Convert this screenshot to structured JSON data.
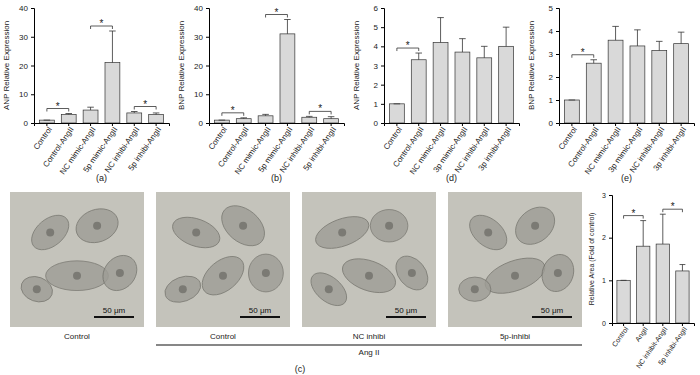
{
  "chart_data": [
    {
      "type": "bar",
      "title": "(a)",
      "y_label": "ANP Relative Expression",
      "categories": [
        "Control",
        "Control-AngII",
        "NC mimic-AngII",
        "5p mimic-AngII",
        "NC inhibi-AngII",
        "5p inhibi-AngII"
      ],
      "values": [
        1,
        3,
        4.5,
        21,
        3.5,
        3
      ],
      "errors": [
        0,
        0.3,
        1,
        11,
        0.5,
        0.5
      ],
      "color": "#d9d9d9",
      "ylim": [
        0,
        40
      ],
      "yticks": [
        0,
        10,
        20,
        30,
        40
      ],
      "annotations": [
        {
          "text": "*",
          "between": [
            "Control",
            "Control-AngII"
          ]
        },
        {
          "text": "*",
          "between": [
            "NC mimic-AngII",
            "5p mimic-AngII"
          ]
        },
        {
          "text": "*",
          "between": [
            "NC inhibi-AngII",
            "5p inhibi-AngII"
          ]
        }
      ]
    },
    {
      "type": "bar",
      "title": "(b)",
      "y_label": "BNP Relative Expression",
      "categories": [
        "Control",
        "Control-AngII",
        "NC mimic-AngII",
        "5p mimic-AngII",
        "NC inhibi-AngII",
        "5p inhibi-AngII"
      ],
      "values": [
        1,
        1.5,
        2.5,
        31,
        2,
        1.5
      ],
      "errors": [
        0,
        0.3,
        0.5,
        5,
        0.3,
        0.7
      ],
      "color": "#d9d9d9",
      "ylim": [
        0,
        40
      ],
      "yticks": [
        0,
        10,
        20,
        30,
        40
      ],
      "annotations": [
        {
          "text": "*",
          "between": [
            "Control",
            "Control-AngII"
          ]
        },
        {
          "text": "*",
          "between": [
            "NC mimic-AngII",
            "5p mimic-AngII"
          ]
        },
        {
          "text": "*",
          "between": [
            "NC inhibi-AngII",
            "5p inhibi-AngII"
          ]
        }
      ]
    },
    {
      "type": "bar",
      "title": "(d)",
      "y_label": "ANP Relative Expression",
      "categories": [
        "Control",
        "Control-AngII",
        "NC mimic-AngII",
        "3p mimic-AngII",
        "NC inhibi-AngII",
        "3p inhibi-AngII"
      ],
      "values": [
        1,
        3.3,
        4.2,
        3.7,
        3.4,
        4
      ],
      "errors": [
        0,
        0.35,
        1.3,
        0.7,
        0.6,
        1
      ],
      "color": "#d9d9d9",
      "ylim": [
        0,
        6
      ],
      "yticks": [
        0,
        1,
        2,
        3,
        4,
        5,
        6
      ],
      "annotations": [
        {
          "text": "*",
          "between": [
            "Control",
            "Control-AngII"
          ]
        }
      ]
    },
    {
      "type": "bar",
      "title": "(e)",
      "y_label": "BNP Relative Expression",
      "categories": [
        "Control",
        "Control-AngII",
        "NC mimic-AngII",
        "3p mimic-AngII",
        "NC inhibi-AngII",
        "3p inhibi-AngII"
      ],
      "values": [
        1,
        2.6,
        3.6,
        3.35,
        3.15,
        3.45
      ],
      "errors": [
        0,
        0.15,
        0.6,
        0.7,
        0.4,
        0.5
      ],
      "color": "#d9d9d9",
      "ylim": [
        0,
        5
      ],
      "yticks": [
        0,
        1,
        2,
        3,
        4,
        5
      ],
      "annotations": [
        {
          "text": "*",
          "between": [
            "Control",
            "Control-AngII"
          ]
        }
      ]
    },
    {
      "type": "bar",
      "y_label": "Relative Area (Fold of control)",
      "categories": [
        "Control",
        "AngII",
        "NC inhibit-AngII",
        "5p inhibi-AngII"
      ],
      "values": [
        1,
        1.8,
        1.85,
        1.22
      ],
      "errors": [
        0,
        0.6,
        0.7,
        0.15
      ],
      "color": "#d9d9d9",
      "ylim": [
        0,
        3
      ],
      "yticks": [
        0,
        1,
        2,
        3
      ],
      "annotations": [
        {
          "text": "*",
          "between": [
            "Control",
            "AngII"
          ]
        },
        {
          "text": "*",
          "between": [
            "NC inhibit-AngII",
            "5p inhibi-AngII"
          ]
        }
      ]
    }
  ],
  "micrographs": {
    "label": "(c)",
    "group_label": "Ang II",
    "images": [
      {
        "caption": "Control",
        "scale_bar": "50 μm",
        "in_group": false
      },
      {
        "caption": "Control",
        "scale_bar": "50 μm",
        "in_group": true
      },
      {
        "caption": "NC inhibi",
        "scale_bar": "50 μm",
        "in_group": true
      },
      {
        "caption": "5p-inhibi",
        "scale_bar": "50 μm",
        "in_group": true
      }
    ]
  }
}
